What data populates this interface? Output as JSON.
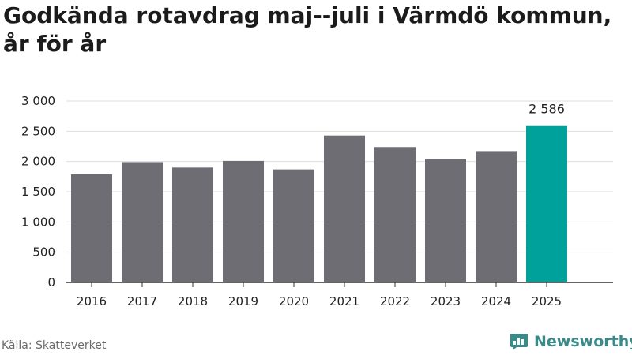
{
  "title": "Godkända rotavdrag maj--juli i Värmdö kommun, år för år",
  "source": "Källa: Skatteverket",
  "brand": {
    "name": "Newsworthy",
    "icon": "newsworthy-logo-icon"
  },
  "colors": {
    "bar": "#6e6d73",
    "highlight": "#00a19a",
    "grid": "#dedede",
    "axis": "#333333",
    "text": "#222222"
  },
  "chart_data": {
    "type": "bar",
    "categories": [
      "2016",
      "2017",
      "2018",
      "2019",
      "2020",
      "2021",
      "2022",
      "2023",
      "2024",
      "2025"
    ],
    "values": [
      1790,
      1990,
      1900,
      2010,
      1870,
      2430,
      2240,
      2040,
      2160,
      2586
    ],
    "highlight_index": 9,
    "data_labels": {
      "9": "2 586"
    },
    "ylim": [
      0,
      3000
    ],
    "yticks": [
      0,
      500,
      1000,
      1500,
      2000,
      2500,
      3000
    ],
    "ytick_labels": [
      "0",
      "500",
      "1 000",
      "1 500",
      "2 000",
      "2 500",
      "3 000"
    ],
    "xlabel": "",
    "ylabel": "",
    "grid": true,
    "legend": "none"
  }
}
